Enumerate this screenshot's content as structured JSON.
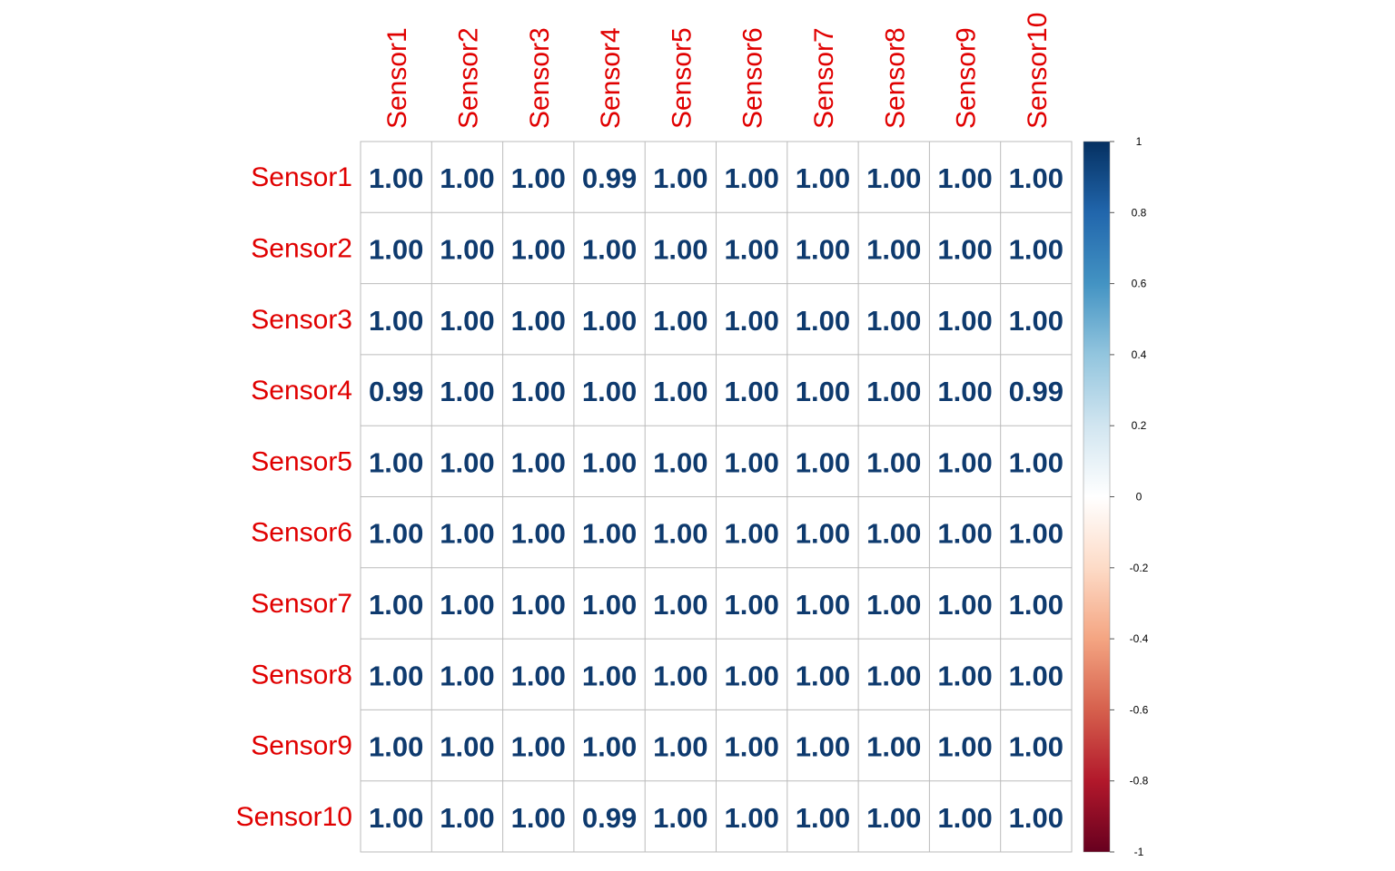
{
  "chart_data": {
    "type": "heatmap",
    "title": "",
    "xlabel": "",
    "ylabel": "",
    "labels": [
      "Sensor1",
      "Sensor2",
      "Sensor3",
      "Sensor4",
      "Sensor5",
      "Sensor6",
      "Sensor7",
      "Sensor8",
      "Sensor9",
      "Sensor10"
    ],
    "display_values": [
      [
        "1.00",
        "1.00",
        "1.00",
        "0.99",
        "1.00",
        "1.00",
        "1.00",
        "1.00",
        "1.00",
        "1.00"
      ],
      [
        "1.00",
        "1.00",
        "1.00",
        "1.00",
        "1.00",
        "1.00",
        "1.00",
        "1.00",
        "1.00",
        "1.00"
      ],
      [
        "1.00",
        "1.00",
        "1.00",
        "1.00",
        "1.00",
        "1.00",
        "1.00",
        "1.00",
        "1.00",
        "1.00"
      ],
      [
        "0.99",
        "1.00",
        "1.00",
        "1.00",
        "1.00",
        "1.00",
        "1.00",
        "1.00",
        "1.00",
        "0.99"
      ],
      [
        "1.00",
        "1.00",
        "1.00",
        "1.00",
        "1.00",
        "1.00",
        "1.00",
        "1.00",
        "1.00",
        "1.00"
      ],
      [
        "1.00",
        "1.00",
        "1.00",
        "1.00",
        "1.00",
        "1.00",
        "1.00",
        "1.00",
        "1.00",
        "1.00"
      ],
      [
        "1.00",
        "1.00",
        "1.00",
        "1.00",
        "1.00",
        "1.00",
        "1.00",
        "1.00",
        "1.00",
        "1.00"
      ],
      [
        "1.00",
        "1.00",
        "1.00",
        "1.00",
        "1.00",
        "1.00",
        "1.00",
        "1.00",
        "1.00",
        "1.00"
      ],
      [
        "1.00",
        "1.00",
        "1.00",
        "1.00",
        "1.00",
        "1.00",
        "1.00",
        "1.00",
        "1.00",
        "1.00"
      ],
      [
        "1.00",
        "1.00",
        "1.00",
        "0.99",
        "1.00",
        "1.00",
        "1.00",
        "1.00",
        "1.00",
        "1.00"
      ]
    ],
    "colorbar": {
      "range": [
        -1,
        1
      ],
      "ticks": [
        "1",
        "0.8",
        "0.6",
        "0.4",
        "0.2",
        "0",
        "-0.2",
        "-0.4",
        "-0.6",
        "-0.8",
        "-1"
      ],
      "tick_values": [
        1,
        0.8,
        0.6,
        0.4,
        0.2,
        0,
        -0.2,
        -0.4,
        -0.6,
        -0.8,
        -1
      ],
      "colors": [
        "#67001F",
        "#B2182B",
        "#D6604D",
        "#F4A582",
        "#FDDBC7",
        "#FFFFFF",
        "#D1E5F0",
        "#92C5DE",
        "#4393C3",
        "#2166AC",
        "#053061"
      ],
      "position": "right"
    },
    "label_color": "#E00000",
    "value_color": "#0E3A6E",
    "grid_color": "#BBBBBB",
    "grid": true
  }
}
